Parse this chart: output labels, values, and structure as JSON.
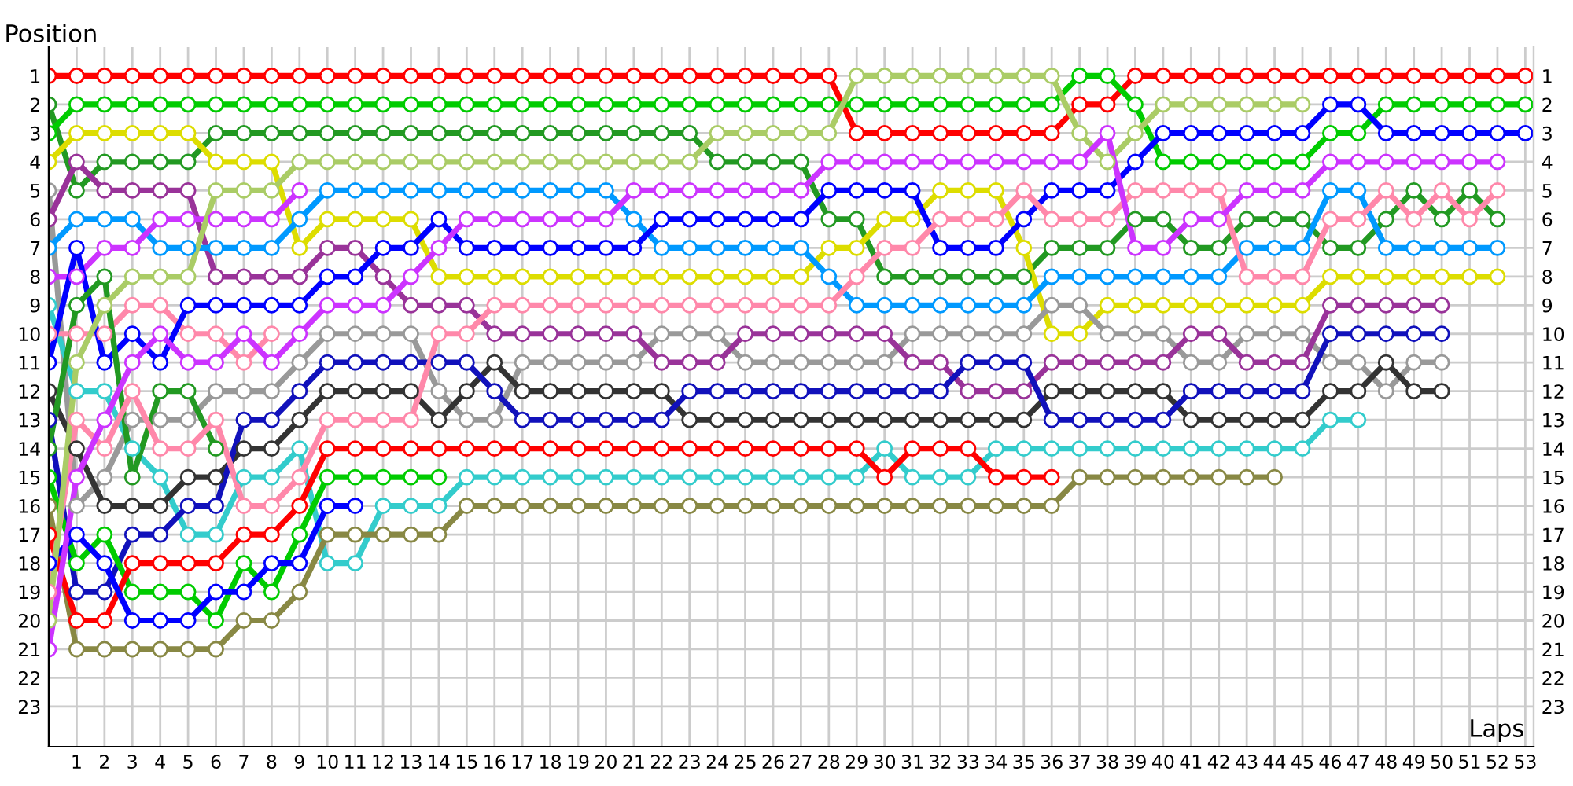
{
  "chart_data": {
    "type": "line",
    "xlabel": "Laps",
    "ylabel": "Position",
    "marker": "circle",
    "line_style": "solid",
    "grid": true,
    "x": [
      0,
      1,
      2,
      3,
      4,
      5,
      6,
      7,
      8,
      9,
      10,
      11,
      12,
      13,
      14,
      15,
      16,
      17,
      18,
      19,
      20,
      21,
      22,
      23,
      24,
      25,
      26,
      27,
      28,
      29,
      30,
      31,
      32,
      33,
      34,
      35,
      36,
      37,
      38,
      39,
      40,
      41,
      42,
      43,
      44,
      45,
      46,
      47,
      48,
      49,
      50,
      51,
      52,
      53
    ],
    "xlim": [
      0,
      53.3
    ],
    "ylim": [
      24.4,
      0
    ],
    "y2lim": [
      24.4,
      0
    ],
    "xticks": [
      1,
      2,
      3,
      4,
      5,
      6,
      7,
      8,
      9,
      10,
      11,
      12,
      13,
      14,
      15,
      16,
      17,
      18,
      19,
      20,
      21,
      22,
      23,
      24,
      25,
      26,
      27,
      28,
      29,
      30,
      31,
      32,
      33,
      34,
      35,
      36,
      37,
      38,
      39,
      40,
      41,
      42,
      43,
      44,
      45,
      46,
      47,
      48,
      49,
      50,
      51,
      52,
      53
    ],
    "yticks": [
      1,
      2,
      3,
      4,
      5,
      6,
      7,
      8,
      9,
      10,
      11,
      12,
      13,
      14,
      15,
      16,
      17,
      18,
      19,
      20,
      21,
      22,
      23
    ],
    "y2ticks": [
      1,
      2,
      3,
      4,
      5,
      6,
      7,
      8,
      9,
      10,
      11,
      12,
      13,
      14,
      15,
      16,
      17,
      18,
      19,
      20,
      21,
      22,
      23
    ],
    "series": [
      {
        "color": "#ff0000",
        "values": [
          1,
          1,
          1,
          1,
          1,
          1,
          1,
          1,
          1,
          1,
          1,
          1,
          1,
          1,
          1,
          1,
          1,
          1,
          1,
          1,
          1,
          1,
          1,
          1,
          1,
          1,
          1,
          1,
          1,
          3,
          3,
          3,
          3,
          3,
          3,
          3,
          3,
          2,
          2,
          1,
          1,
          1,
          1,
          1,
          1,
          1,
          1,
          1,
          1,
          1,
          1,
          1,
          1,
          1
        ]
      },
      {
        "color": "#229922",
        "values": [
          2,
          5,
          4,
          4,
          4,
          4,
          3,
          3,
          3,
          3,
          3,
          3,
          3,
          3,
          3,
          3,
          3,
          3,
          3,
          3,
          3,
          3,
          3,
          3,
          4,
          4,
          4,
          4,
          6,
          6,
          8,
          8,
          8,
          8,
          8,
          8,
          7,
          7,
          7,
          6,
          6,
          7,
          7,
          6,
          6,
          6,
          7,
          7,
          6,
          5,
          6,
          5,
          6,
          null
        ]
      },
      {
        "color": "#00cc00",
        "values": [
          3,
          2,
          2,
          2,
          2,
          2,
          2,
          2,
          2,
          2,
          2,
          2,
          2,
          2,
          2,
          2,
          2,
          2,
          2,
          2,
          2,
          2,
          2,
          2,
          2,
          2,
          2,
          2,
          2,
          2,
          2,
          2,
          2,
          2,
          2,
          2,
          2,
          1,
          1,
          2,
          4,
          4,
          4,
          4,
          4,
          4,
          3,
          3,
          2,
          2,
          2,
          2,
          2,
          2
        ]
      },
      {
        "color": "#dddd00",
        "values": [
          4,
          3,
          3,
          3,
          3,
          3,
          4,
          4,
          4,
          7,
          6,
          6,
          6,
          6,
          8,
          8,
          8,
          8,
          8,
          8,
          8,
          8,
          8,
          8,
          8,
          8,
          8,
          8,
          7,
          7,
          6,
          6,
          5,
          5,
          5,
          7,
          10,
          10,
          9,
          9,
          9,
          9,
          9,
          9,
          9,
          9,
          8,
          8,
          8,
          8,
          8,
          8,
          8,
          null
        ]
      },
      {
        "color": "#999999",
        "values": [
          5,
          16,
          15,
          13,
          13,
          13,
          12,
          12,
          12,
          11,
          10,
          10,
          10,
          10,
          12,
          13,
          13,
          11,
          11,
          11,
          11,
          11,
          10,
          10,
          10,
          11,
          11,
          11,
          11,
          11,
          11,
          10,
          10,
          10,
          10,
          10,
          9,
          9,
          10,
          10,
          10,
          11,
          11,
          10,
          10,
          10,
          11,
          11,
          12,
          11,
          11,
          null,
          null,
          null
        ]
      },
      {
        "color": "#993399",
        "values": [
          6,
          4,
          5,
          5,
          5,
          5,
          8,
          8,
          8,
          8,
          7,
          7,
          8,
          9,
          9,
          9,
          10,
          10,
          10,
          10,
          10,
          10,
          11,
          11,
          11,
          10,
          10,
          10,
          10,
          10,
          10,
          11,
          11,
          12,
          12,
          12,
          11,
          11,
          11,
          11,
          11,
          10,
          10,
          11,
          11,
          11,
          9,
          9,
          9,
          9,
          9,
          null,
          null,
          null
        ]
      },
      {
        "color": "#0099ff",
        "values": [
          7,
          6,
          6,
          6,
          7,
          7,
          7,
          7,
          7,
          6,
          5,
          5,
          5,
          5,
          5,
          5,
          5,
          5,
          5,
          5,
          5,
          6,
          7,
          7,
          7,
          7,
          7,
          7,
          8,
          9,
          9,
          9,
          9,
          9,
          9,
          9,
          8,
          8,
          8,
          8,
          8,
          8,
          8,
          7,
          7,
          7,
          5,
          5,
          7,
          7,
          7,
          7,
          7,
          null
        ]
      },
      {
        "color": "#cc33ff",
        "values": [
          8,
          8,
          7,
          7,
          6,
          6,
          6,
          6,
          6,
          5,
          null,
          null,
          null,
          null,
          null,
          null,
          null,
          null,
          null,
          null,
          null,
          null,
          null,
          null,
          null,
          null,
          null,
          null,
          null,
          null,
          null,
          null,
          null,
          null,
          null,
          null,
          null,
          null,
          null,
          null,
          null,
          null,
          null,
          null,
          null,
          null,
          null,
          null,
          null,
          null,
          null,
          null,
          null,
          null
        ]
      },
      {
        "color": "#33cccc",
        "values": [
          9,
          12,
          12,
          14,
          15,
          17,
          17,
          15,
          15,
          14,
          18,
          18,
          16,
          16,
          16,
          15,
          15,
          15,
          15,
          15,
          15,
          15,
          15,
          15,
          15,
          15,
          15,
          15,
          15,
          15,
          14,
          15,
          15,
          15,
          14,
          14,
          14,
          14,
          14,
          14,
          14,
          14,
          14,
          14,
          14,
          14,
          13,
          13,
          null,
          null,
          null,
          null,
          null,
          null
        ]
      },
      {
        "color": "#ff88aa",
        "values": [
          10,
          10,
          10,
          9,
          9,
          10,
          10,
          11,
          10,
          null,
          null,
          null,
          null,
          null,
          null,
          null,
          null,
          null,
          null,
          null,
          null,
          null,
          null,
          null,
          null,
          null,
          null,
          null,
          null,
          null,
          null,
          null,
          null,
          null,
          null,
          null,
          null,
          null,
          null,
          null,
          null,
          null,
          null,
          null,
          null,
          null,
          null,
          null,
          null,
          null,
          null,
          null,
          null,
          null
        ]
      },
      {
        "color": "#0000ff",
        "values": [
          11,
          7,
          11,
          10,
          11,
          9,
          9,
          9,
          9,
          9,
          8,
          8,
          7,
          7,
          6,
          7,
          7,
          7,
          7,
          7,
          7,
          7,
          6,
          6,
          6,
          6,
          6,
          6,
          5,
          5,
          5,
          5,
          7,
          7,
          7,
          6,
          5,
          5,
          5,
          4,
          3,
          3,
          3,
          3,
          3,
          3,
          2,
          2,
          3,
          3,
          3,
          3,
          3,
          3
        ]
      },
      {
        "color": "#333333",
        "values": [
          12,
          14,
          16,
          16,
          16,
          15,
          15,
          14,
          14,
          13,
          12,
          12,
          12,
          12,
          13,
          12,
          11,
          12,
          12,
          12,
          12,
          12,
          12,
          13,
          13,
          13,
          13,
          13,
          13,
          13,
          13,
          13,
          13,
          13,
          13,
          13,
          12,
          12,
          12,
          12,
          12,
          13,
          13,
          13,
          13,
          13,
          12,
          12,
          11,
          12,
          12,
          null,
          null,
          null
        ]
      },
      {
        "color": "#1111bb",
        "values": [
          13,
          19,
          19,
          17,
          17,
          16,
          16,
          13,
          13,
          12,
          11,
          11,
          11,
          11,
          11,
          11,
          12,
          13,
          13,
          13,
          13,
          13,
          13,
          12,
          12,
          12,
          12,
          12,
          12,
          12,
          12,
          12,
          12,
          11,
          11,
          11,
          13,
          13,
          13,
          13,
          13,
          12,
          12,
          12,
          12,
          12,
          10,
          10,
          10,
          10,
          10,
          null,
          null,
          null
        ]
      },
      {
        "color": "#229922",
        "values": [
          14,
          9,
          8,
          15,
          12,
          12,
          14,
          null,
          null,
          null,
          null,
          null,
          null,
          null,
          null,
          null,
          null,
          null,
          null,
          null,
          null,
          null,
          null,
          null,
          null,
          null,
          null,
          null,
          null,
          null,
          null,
          null,
          null,
          null,
          null,
          null,
          null,
          null,
          null,
          null,
          null,
          null,
          null,
          null,
          null,
          null,
          null,
          null,
          null,
          null,
          null,
          null,
          null,
          null
        ]
      },
      {
        "color": "#00cc00",
        "values": [
          15,
          18,
          17,
          19,
          19,
          19,
          20,
          18,
          19,
          17,
          15,
          15,
          15,
          15,
          15,
          null,
          null,
          null,
          null,
          null,
          null,
          null,
          null,
          null,
          null,
          null,
          null,
          null,
          null,
          null,
          null,
          null,
          null,
          null,
          null,
          null,
          null,
          null,
          null,
          null,
          null,
          null,
          null,
          null,
          null,
          null,
          null,
          null,
          null,
          null,
          null,
          null,
          null,
          null
        ]
      },
      {
        "color": "#888844",
        "values": [
          16,
          21,
          21,
          21,
          21,
          21,
          21,
          20,
          20,
          19,
          17,
          17,
          17,
          17,
          17,
          16,
          16,
          16,
          16,
          16,
          16,
          16,
          16,
          16,
          16,
          16,
          16,
          16,
          16,
          16,
          16,
          16,
          16,
          16,
          16,
          16,
          16,
          15,
          15,
          15,
          15,
          15,
          15,
          15,
          15,
          null,
          null,
          null,
          null,
          null,
          null,
          null,
          null,
          null
        ]
      },
      {
        "color": "#ff0000",
        "values": [
          17,
          20,
          20,
          18,
          18,
          18,
          18,
          17,
          17,
          16,
          14,
          14,
          14,
          14,
          14,
          14,
          14,
          14,
          14,
          14,
          14,
          14,
          14,
          14,
          14,
          14,
          14,
          14,
          14,
          14,
          15,
          14,
          14,
          14,
          15,
          15,
          15,
          null,
          null,
          null,
          null,
          null,
          null,
          null,
          null,
          null,
          null,
          null,
          null,
          null,
          null,
          null,
          null,
          null
        ]
      },
      {
        "color": "#0000ff",
        "values": [
          18,
          17,
          18,
          20,
          20,
          20,
          19,
          19,
          18,
          18,
          16,
          16,
          null,
          null,
          null,
          null,
          null,
          null,
          null,
          null,
          null,
          null,
          null,
          null,
          null,
          null,
          null,
          null,
          null,
          null,
          null,
          null,
          null,
          null,
          null,
          null,
          null,
          null,
          null,
          null,
          null,
          null,
          null,
          null,
          null,
          null,
          null,
          null,
          null,
          null,
          null,
          null,
          null,
          null
        ]
      },
      {
        "color": "#ff88aa",
        "values": [
          19,
          13,
          14,
          12,
          14,
          14,
          13,
          16,
          16,
          15,
          13,
          13,
          13,
          13,
          10,
          10,
          9,
          9,
          9,
          9,
          9,
          9,
          9,
          9,
          9,
          9,
          9,
          9,
          9,
          8,
          7,
          7,
          6,
          6,
          6,
          5,
          6,
          6,
          6,
          5,
          5,
          5,
          5,
          8,
          8,
          8,
          6,
          6,
          5,
          6,
          5,
          6,
          5,
          null
        ]
      },
      {
        "color": "#aacc66",
        "values": [
          20,
          11,
          9,
          8,
          8,
          8,
          5,
          5,
          5,
          4,
          4,
          4,
          4,
          4,
          4,
          4,
          4,
          4,
          4,
          4,
          4,
          4,
          4,
          4,
          3,
          3,
          3,
          3,
          3,
          1,
          1,
          1,
          1,
          1,
          1,
          1,
          1,
          3,
          4,
          3,
          2,
          2,
          2,
          2,
          2,
          2,
          null,
          null,
          null,
          null,
          null,
          null,
          null,
          null
        ]
      },
      {
        "color": "#cc33ff",
        "values": [
          21,
          15,
          13,
          11,
          10,
          11,
          11,
          10,
          11,
          10,
          9,
          9,
          9,
          8,
          7,
          6,
          6,
          6,
          6,
          6,
          6,
          5,
          5,
          5,
          5,
          5,
          5,
          5,
          4,
          4,
          4,
          4,
          4,
          4,
          4,
          4,
          4,
          4,
          3,
          7,
          7,
          6,
          6,
          5,
          5,
          5,
          4,
          4,
          4,
          4,
          4,
          4,
          4,
          null
        ]
      }
    ]
  }
}
